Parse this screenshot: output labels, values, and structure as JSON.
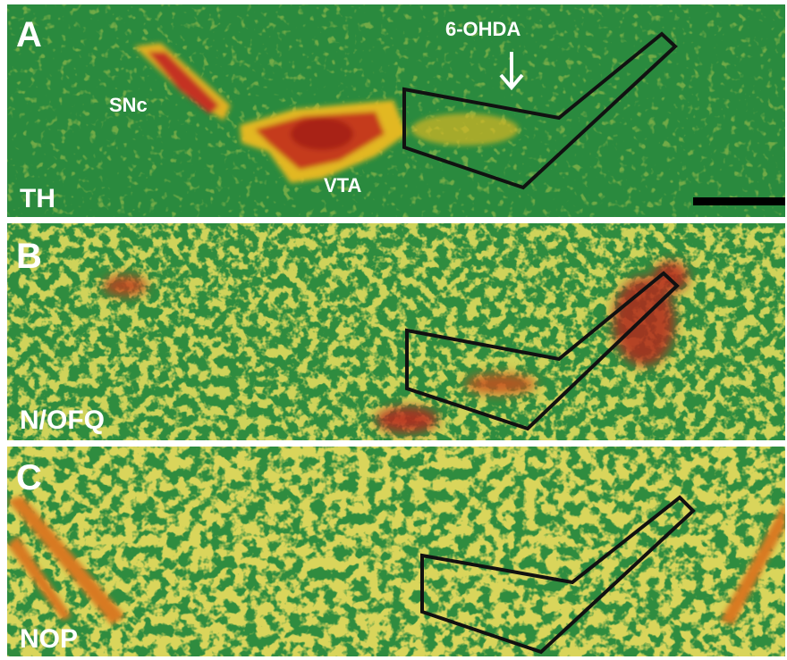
{
  "panels": [
    {
      "letter": "A",
      "stain": "TH",
      "labels": [
        "SNc",
        "VTA",
        "6-OHDA"
      ]
    },
    {
      "letter": "B",
      "stain": "N/OFQ"
    },
    {
      "letter": "C",
      "stain": "NOP"
    }
  ]
}
